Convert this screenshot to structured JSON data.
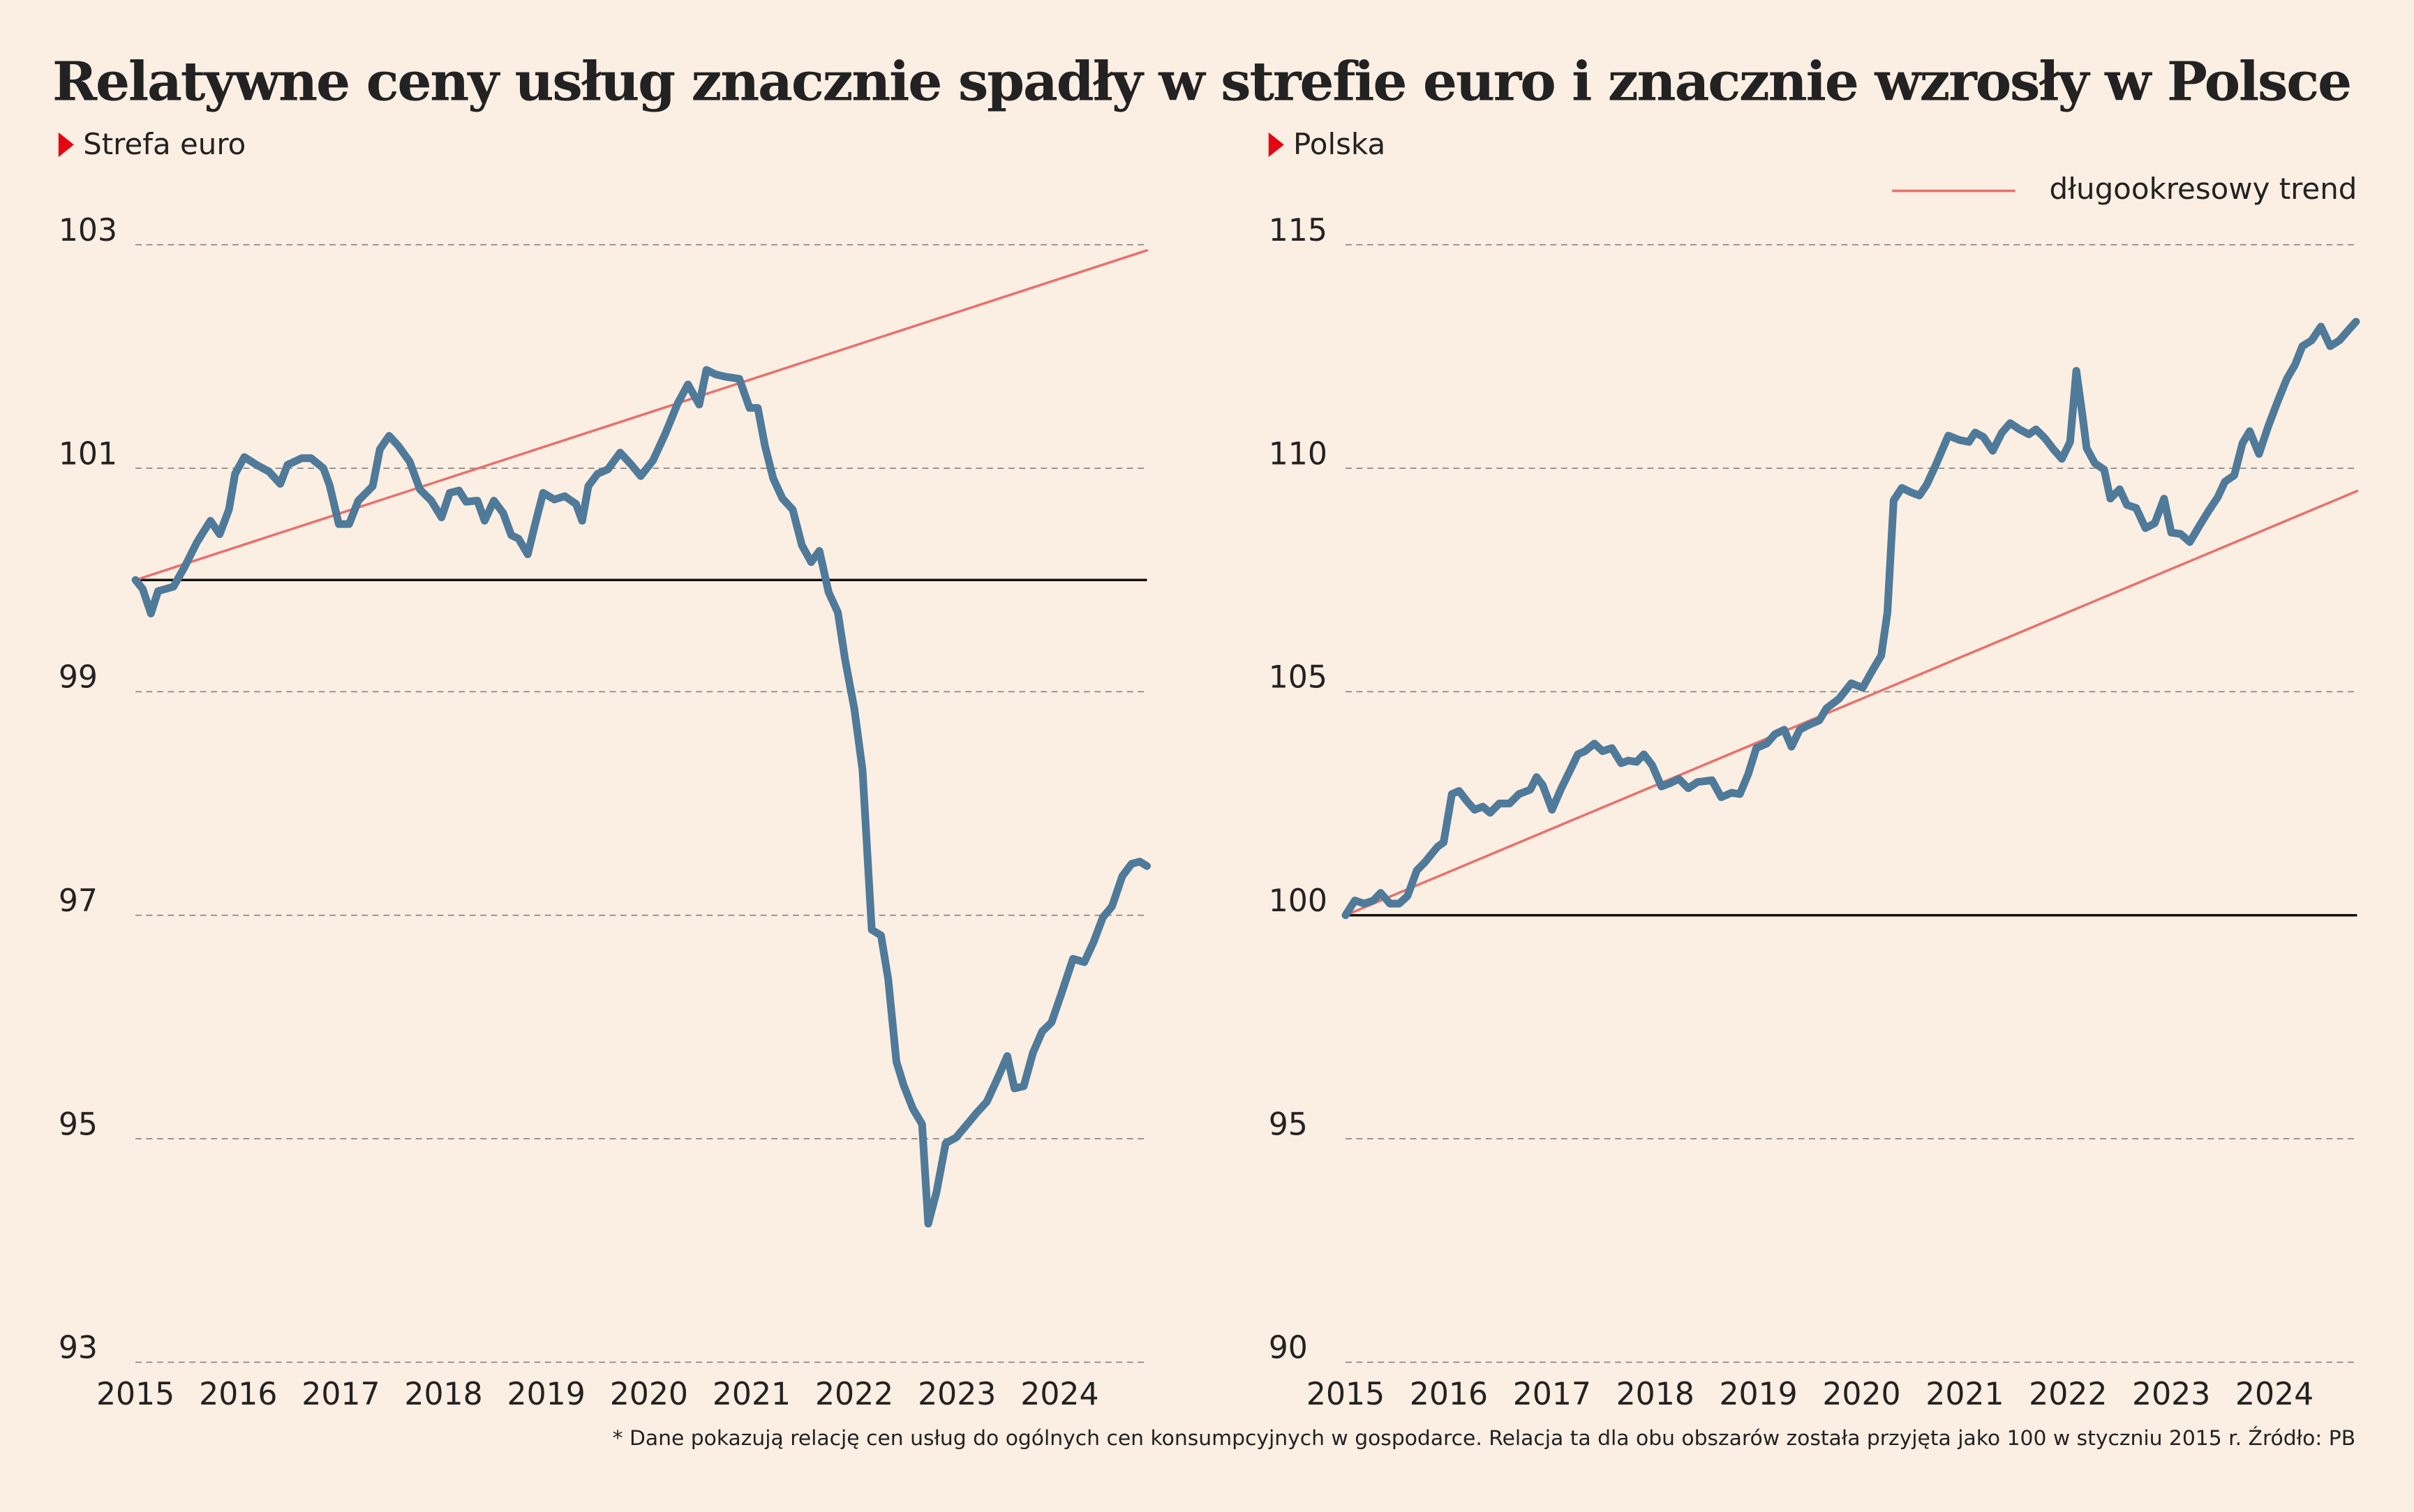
{
  "title": "Relatywne ceny usług znacznie spadły w strefie euro i znacznie wzrosły w Polsce",
  "note": "* Dane pokazują relację cen usług do ogólnych cen konsumpcyjnych w gospodarce. Relacja ta dla obu obszarów została przyjęta jako 100 w styczniu 2015 r. Źródło: PB",
  "chart_data": [
    {
      "type": "line",
      "title": "Strefa euro",
      "xlim": [
        2015,
        2024.85
      ],
      "xticks": [
        2015,
        2016,
        2017,
        2018,
        2019,
        2020,
        2021,
        2022,
        2023,
        2024
      ],
      "ylim": [
        93,
        103
      ],
      "yticks": [
        93,
        95,
        97,
        99,
        101,
        103
      ],
      "grid": true,
      "baseline": 100,
      "series": [
        {
          "color": "#4f7a99",
          "x": [
            2015.0,
            2015.07,
            2015.15,
            2015.22,
            2015.37,
            2015.48,
            2015.6,
            2015.73,
            2015.82,
            2015.91,
            2015.97,
            2016.06,
            2016.18,
            2016.3,
            2016.41,
            2016.48,
            2016.62,
            2016.71,
            2016.83,
            2016.89,
            2016.98,
            2017.08,
            2017.17,
            2017.31,
            2017.38,
            2017.47,
            2017.56,
            2017.67,
            2017.77,
            2017.88,
            2017.98,
            2018.06,
            2018.15,
            2018.22,
            2018.33,
            2018.4,
            2018.49,
            2018.58,
            2018.66,
            2018.73,
            2018.82,
            2018.9,
            2018.97,
            2019.08,
            2019.18,
            2019.29,
            2019.35,
            2019.41,
            2019.5,
            2019.6,
            2019.72,
            2019.83,
            2019.92,
            2020.04,
            2020.16,
            2020.28,
            2020.38,
            2020.49,
            2020.56,
            2020.65,
            2020.74,
            2020.88,
            2020.98,
            2021.06,
            2021.13,
            2021.21,
            2021.3,
            2021.4,
            2021.49,
            2021.58,
            2021.66,
            2021.75,
            2021.84,
            2021.91,
            2022.0,
            2022.08,
            2022.17,
            2022.26,
            2022.33,
            2022.41,
            2022.48,
            2022.57,
            2022.66,
            2022.72,
            2022.8,
            2022.89,
            2022.99,
            2023.1,
            2023.19,
            2023.29,
            2023.4,
            2023.49,
            2023.56,
            2023.65,
            2023.74,
            2023.83,
            2023.92,
            2024.01,
            2024.13,
            2024.24,
            2024.33,
            2024.42,
            2024.51,
            2024.61,
            2024.7,
            2024.78,
            2024.85
          ],
          "values": [
            100,
            99.92,
            99.7,
            99.9,
            99.94,
            100.12,
            100.34,
            100.53,
            100.41,
            100.63,
            100.95,
            101.1,
            101.03,
            100.97,
            100.86,
            101.03,
            101.09,
            101.09,
            101.0,
            100.85,
            100.5,
            100.5,
            100.71,
            100.84,
            101.17,
            101.29,
            101.2,
            101.06,
            100.81,
            100.71,
            100.56,
            100.78,
            100.8,
            100.7,
            100.71,
            100.53,
            100.71,
            100.6,
            100.4,
            100.37,
            100.23,
            100.53,
            100.78,
            100.72,
            100.75,
            100.68,
            100.53,
            100.84,
            100.95,
            100.99,
            101.14,
            101.03,
            100.93,
            101.07,
            101.31,
            101.58,
            101.75,
            101.57,
            101.88,
            101.84,
            101.82,
            101.8,
            101.54,
            101.54,
            101.2,
            100.91,
            100.73,
            100.63,
            100.31,
            100.16,
            100.26,
            99.89,
            99.71,
            99.29,
            98.85,
            98.3,
            96.87,
            96.82,
            96.43,
            95.69,
            95.48,
            95.27,
            95.13,
            94.24,
            94.52,
            94.96,
            95.01,
            95.13,
            95.23,
            95.33,
            95.55,
            95.74,
            95.45,
            95.47,
            95.77,
            95.96,
            96.04,
            96.28,
            96.61,
            96.58,
            96.76,
            96.98,
            97.08,
            97.35,
            97.46,
            97.48,
            97.44
          ]
        },
        {
          "color": "#e8716d",
          "x": [
            2015,
            2024.85
          ],
          "values": [
            100,
            102.95
          ]
        }
      ]
    },
    {
      "type": "line",
      "title": "Polska",
      "xlim": [
        2015,
        2024.8
      ],
      "xticks": [
        2015,
        2016,
        2017,
        2018,
        2019,
        2020,
        2021,
        2022,
        2023,
        2024
      ],
      "ylim": [
        90,
        115
      ],
      "yticks": [
        90,
        95,
        100,
        105,
        110,
        115
      ],
      "grid": true,
      "baseline": 100,
      "legend": "top-right",
      "series": [
        {
          "color": "#4f7a99",
          "x": [
            2015.0,
            2015.09,
            2015.18,
            2015.27,
            2015.34,
            2015.43,
            2015.52,
            2015.6,
            2015.69,
            2015.77,
            2015.89,
            2015.95,
            2016.03,
            2016.1,
            2016.18,
            2016.25,
            2016.33,
            2016.4,
            2016.49,
            2016.59,
            2016.68,
            2016.79,
            2016.85,
            2016.91,
            2017.0,
            2017.09,
            2017.18,
            2017.25,
            2017.32,
            2017.41,
            2017.49,
            2017.58,
            2017.67,
            2017.74,
            2017.82,
            2017.89,
            2017.97,
            2018.06,
            2018.14,
            2018.23,
            2018.32,
            2018.41,
            2018.55,
            2018.64,
            2018.74,
            2018.82,
            2018.9,
            2018.98,
            2019.08,
            2019.16,
            2019.25,
            2019.32,
            2019.4,
            2019.49,
            2019.59,
            2019.66,
            2019.78,
            2019.9,
            2020.01,
            2020.11,
            2020.19,
            2020.25,
            2020.31,
            2020.39,
            2020.48,
            2020.56,
            2020.63,
            2020.72,
            2020.84,
            2020.95,
            2021.04,
            2021.1,
            2021.18,
            2021.27,
            2021.36,
            2021.44,
            2021.53,
            2021.62,
            2021.69,
            2021.78,
            2021.86,
            2021.94,
            2022.02,
            2022.08,
            2022.14,
            2022.18,
            2022.26,
            2022.35,
            2022.41,
            2022.5,
            2022.57,
            2022.66,
            2022.75,
            2022.84,
            2022.93,
            2023.0,
            2023.09,
            2023.18,
            2023.27,
            2023.36,
            2023.45,
            2023.52,
            2023.61,
            2023.69,
            2023.76,
            2023.85,
            2023.94,
            2024.03,
            2024.12,
            2024.2,
            2024.27,
            2024.36,
            2024.45,
            2024.54,
            2024.63,
            2024.72,
            2024.79
          ],
          "values": [
            100,
            100.33,
            100.26,
            100.33,
            100.5,
            100.26,
            100.26,
            100.43,
            101.0,
            101.19,
            101.53,
            101.63,
            102.71,
            102.78,
            102.54,
            102.36,
            102.43,
            102.29,
            102.5,
            102.5,
            102.71,
            102.81,
            103.09,
            102.91,
            102.36,
            102.84,
            103.26,
            103.6,
            103.67,
            103.84,
            103.67,
            103.74,
            103.4,
            103.46,
            103.43,
            103.6,
            103.36,
            102.88,
            102.95,
            103.05,
            102.84,
            102.98,
            103.02,
            102.64,
            102.74,
            102.71,
            103.15,
            103.74,
            103.84,
            104.05,
            104.15,
            103.77,
            104.15,
            104.26,
            104.36,
            104.63,
            104.84,
            105.19,
            105.09,
            105.5,
            105.81,
            106.77,
            109.28,
            109.56,
            109.46,
            109.39,
            109.63,
            110.08,
            110.73,
            110.63,
            110.59,
            110.8,
            110.7,
            110.39,
            110.8,
            111.01,
            110.87,
            110.76,
            110.87,
            110.66,
            110.42,
            110.21,
            110.59,
            112.18,
            111.18,
            110.45,
            110.11,
            109.97,
            109.32,
            109.53,
            109.18,
            109.11,
            108.66,
            108.77,
            109.32,
            108.56,
            108.53,
            108.35,
            108.7,
            109.04,
            109.35,
            109.7,
            109.84,
            110.56,
            110.83,
            110.32,
            110.94,
            111.49,
            112.0,
            112.32,
            112.73,
            112.86,
            113.17,
            112.73,
            112.86,
            113.1,
            113.28
          ]
        },
        {
          "name": "długookresowy trend",
          "color": "#e8716d",
          "x": [
            2015,
            2024.8
          ],
          "values": [
            100,
            109.49
          ]
        }
      ]
    }
  ]
}
